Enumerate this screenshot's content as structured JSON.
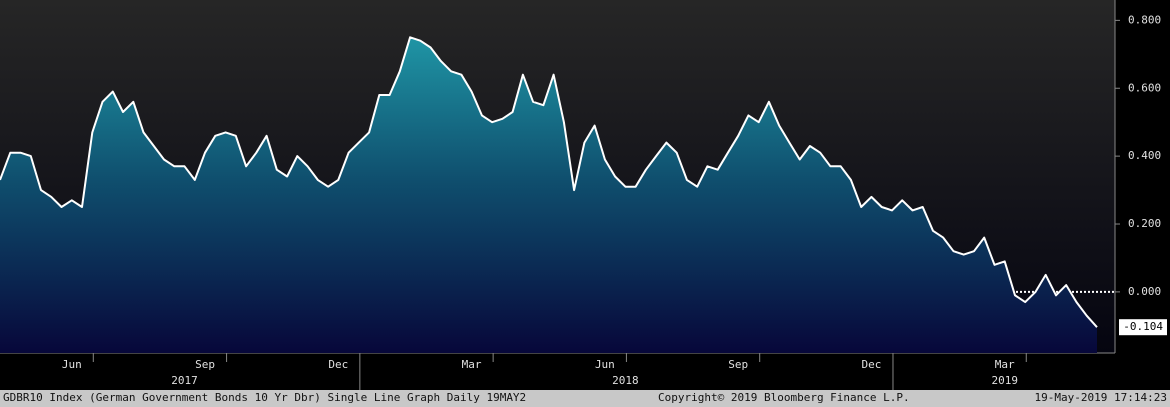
{
  "chart_data": {
    "type": "area",
    "values": [
      0.33,
      0.41,
      0.41,
      0.4,
      0.3,
      0.28,
      0.25,
      0.27,
      0.25,
      0.47,
      0.56,
      0.59,
      0.53,
      0.56,
      0.47,
      0.43,
      0.39,
      0.37,
      0.37,
      0.33,
      0.41,
      0.46,
      0.47,
      0.46,
      0.37,
      0.41,
      0.46,
      0.36,
      0.34,
      0.4,
      0.37,
      0.33,
      0.31,
      0.33,
      0.41,
      0.44,
      0.47,
      0.58,
      0.58,
      0.65,
      0.75,
      0.74,
      0.72,
      0.68,
      0.65,
      0.64,
      0.59,
      0.52,
      0.5,
      0.51,
      0.53,
      0.64,
      0.56,
      0.55,
      0.64,
      0.5,
      0.3,
      0.44,
      0.49,
      0.39,
      0.34,
      0.31,
      0.31,
      0.36,
      0.4,
      0.44,
      0.41,
      0.33,
      0.31,
      0.37,
      0.36,
      0.41,
      0.46,
      0.52,
      0.5,
      0.56,
      0.49,
      0.44,
      0.39,
      0.43,
      0.41,
      0.37,
      0.37,
      0.33,
      0.25,
      0.28,
      0.25,
      0.24,
      0.27,
      0.24,
      0.25,
      0.18,
      0.16,
      0.12,
      0.11,
      0.12,
      0.16,
      0.08,
      0.09,
      -0.01,
      -0.03,
      0.0,
      0.05,
      -0.01,
      0.02,
      -0.03,
      -0.07,
      -0.104
    ],
    "categories": [
      null,
      null,
      null,
      null,
      null,
      null,
      null,
      "Jun",
      null,
      null,
      null,
      null,
      null,
      null,
      null,
      null,
      null,
      null,
      null,
      null,
      "Sep",
      null,
      null,
      null,
      null,
      null,
      null,
      null,
      null,
      null,
      null,
      null,
      null,
      "Dec",
      null,
      null,
      null,
      null,
      null,
      null,
      null,
      null,
      null,
      null,
      null,
      null,
      "Mar",
      null,
      null,
      null,
      null,
      null,
      null,
      null,
      null,
      null,
      null,
      null,
      null,
      "Jun",
      null,
      null,
      null,
      null,
      null,
      null,
      null,
      null,
      null,
      null,
      null,
      null,
      "Sep",
      null,
      null,
      null,
      null,
      null,
      null,
      null,
      null,
      null,
      null,
      null,
      null,
      "Dec",
      null,
      null,
      null,
      null,
      null,
      null,
      null,
      null,
      null,
      null,
      null,
      null,
      "Mar",
      null,
      null,
      null,
      null,
      null,
      null,
      null,
      null,
      null
    ],
    "year_categories": [
      null,
      null,
      null,
      null,
      null,
      null,
      null,
      null,
      null,
      null,
      null,
      null,
      null,
      null,
      null,
      null,
      null,
      null,
      "2017",
      null,
      null,
      null,
      null,
      null,
      null,
      null,
      null,
      null,
      null,
      null,
      null,
      null,
      null,
      null,
      null,
      null,
      null,
      null,
      null,
      null,
      null,
      null,
      null,
      null,
      null,
      null,
      null,
      null,
      null,
      null,
      null,
      null,
      null,
      null,
      null,
      null,
      null,
      null,
      null,
      null,
      null,
      "2018",
      null,
      null,
      null,
      null,
      null,
      null,
      null,
      null,
      null,
      null,
      null,
      null,
      null,
      null,
      null,
      null,
      null,
      null,
      null,
      null,
      null,
      null,
      null,
      null,
      null,
      null,
      null,
      null,
      null,
      null,
      null,
      null,
      null,
      null,
      null,
      null,
      "2019",
      null,
      null,
      null,
      null,
      null,
      null,
      null,
      null,
      null
    ],
    "color": "#ffffff",
    "ylim": [
      -0.18,
      0.86
    ],
    "yticks": [
      {
        "value": 0.8,
        "label": "0.800"
      },
      {
        "value": 0.6,
        "label": "0.600"
      },
      {
        "value": 0.4,
        "label": "0.400"
      },
      {
        "value": 0.2,
        "label": "0.200"
      },
      {
        "value": 0,
        "label": "0.000"
      }
    ],
    "footer": {
      "left": "GDBR10 Index (German Government Bonds 10 Yr Dbr) Single Line Graph  Daily 19MAY2",
      "center": "Copyright© 2019 Bloomberg Finance L.P.",
      "right": "19-May-2019 17:14:23"
    }
  }
}
